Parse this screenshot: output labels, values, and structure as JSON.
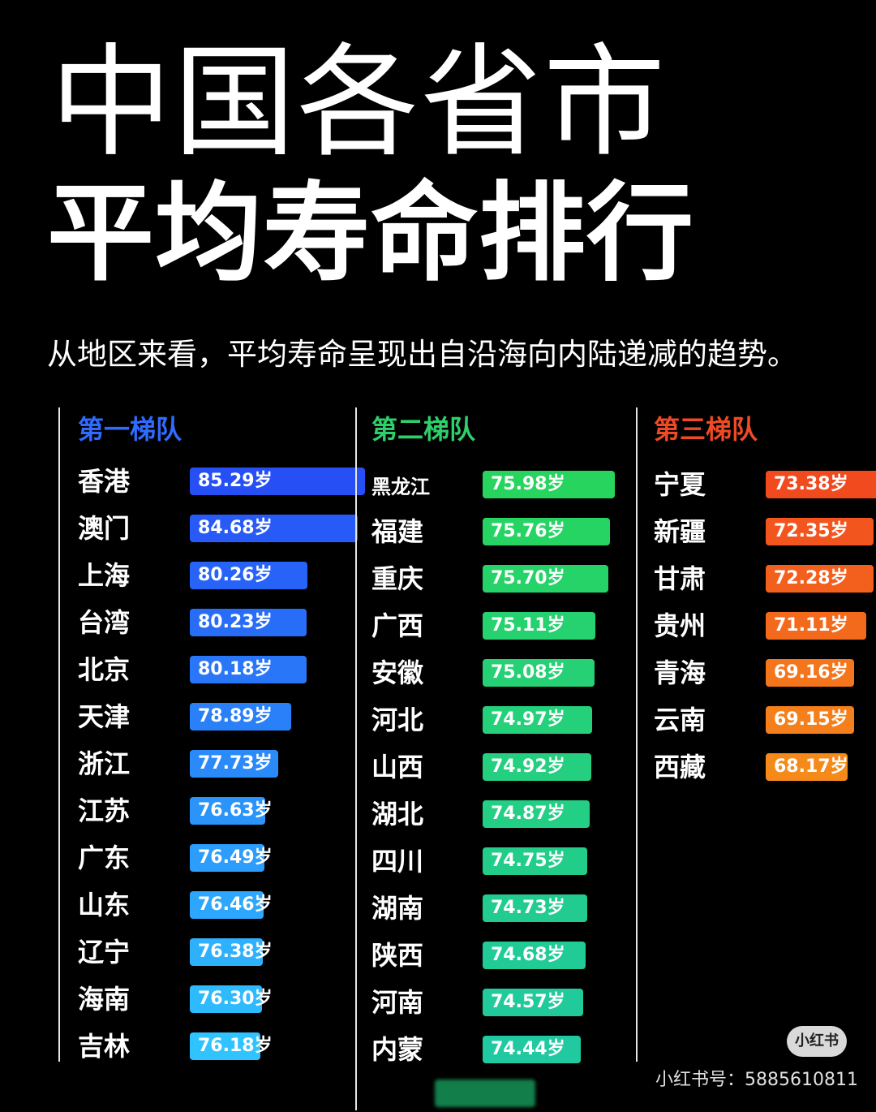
{
  "title_line1": "中国各省市",
  "title_line2": "平均寿命排行",
  "subtitle": "从地区来看，平均寿命呈现出自沿海向内陆递减的趋势。",
  "watermark": "小红书号：5885610811",
  "logo_text": "小红书",
  "colors": {
    "tier1_title": "#2f6bff",
    "tier2_title": "#2fcf6a",
    "tier3_title": "#ef4a24",
    "tier1_bar_top": "#2650f5",
    "tier1_bar_bottom": "#2fc4ff",
    "tier2_bar_top": "#27d55e",
    "tier2_bar_bottom": "#20c9a0",
    "tier3_bar_top": "#f24a1f",
    "tier3_bar_bottom": "#f58a1a"
  },
  "chart_data": {
    "type": "bar",
    "orientation": "horizontal",
    "unit": "岁",
    "tiers": [
      {
        "name": "第一梯队",
        "entries": [
          {
            "label": "香港",
            "value": 85.29
          },
          {
            "label": "澳门",
            "value": 84.68
          },
          {
            "label": "上海",
            "value": 80.26
          },
          {
            "label": "台湾",
            "value": 80.23
          },
          {
            "label": "北京",
            "value": 80.18
          },
          {
            "label": "天津",
            "value": 78.89
          },
          {
            "label": "浙江",
            "value": 77.73
          },
          {
            "label": "江苏",
            "value": 76.63
          },
          {
            "label": "广东",
            "value": 76.49
          },
          {
            "label": "山东",
            "value": 76.46
          },
          {
            "label": "辽宁",
            "value": 76.38
          },
          {
            "label": "海南",
            "value": 76.3
          },
          {
            "label": "吉林",
            "value": 76.18
          }
        ]
      },
      {
        "name": "第二梯队",
        "entries": [
          {
            "label": "黑龙江",
            "value": 75.98
          },
          {
            "label": "福建",
            "value": 75.76
          },
          {
            "label": "重庆",
            "value": 75.7
          },
          {
            "label": "广西",
            "value": 75.11
          },
          {
            "label": "安徽",
            "value": 75.08
          },
          {
            "label": "河北",
            "value": 74.97
          },
          {
            "label": "山西",
            "value": 74.92
          },
          {
            "label": "湖北",
            "value": 74.87
          },
          {
            "label": "四川",
            "value": 74.75
          },
          {
            "label": "湖南",
            "value": 74.73
          },
          {
            "label": "陕西",
            "value": 74.68
          },
          {
            "label": "河南",
            "value": 74.57
          },
          {
            "label": "内蒙",
            "value": 74.44
          }
        ]
      },
      {
        "name": "第三梯队",
        "entries": [
          {
            "label": "宁夏",
            "value": 73.38
          },
          {
            "label": "新疆",
            "value": 72.35
          },
          {
            "label": "甘肃",
            "value": 72.28
          },
          {
            "label": "贵州",
            "value": 71.11
          },
          {
            "label": "青海",
            "value": 69.16
          },
          {
            "label": "云南",
            "value": 69.15
          },
          {
            "label": "西藏",
            "value": 68.17
          }
        ]
      }
    ]
  }
}
